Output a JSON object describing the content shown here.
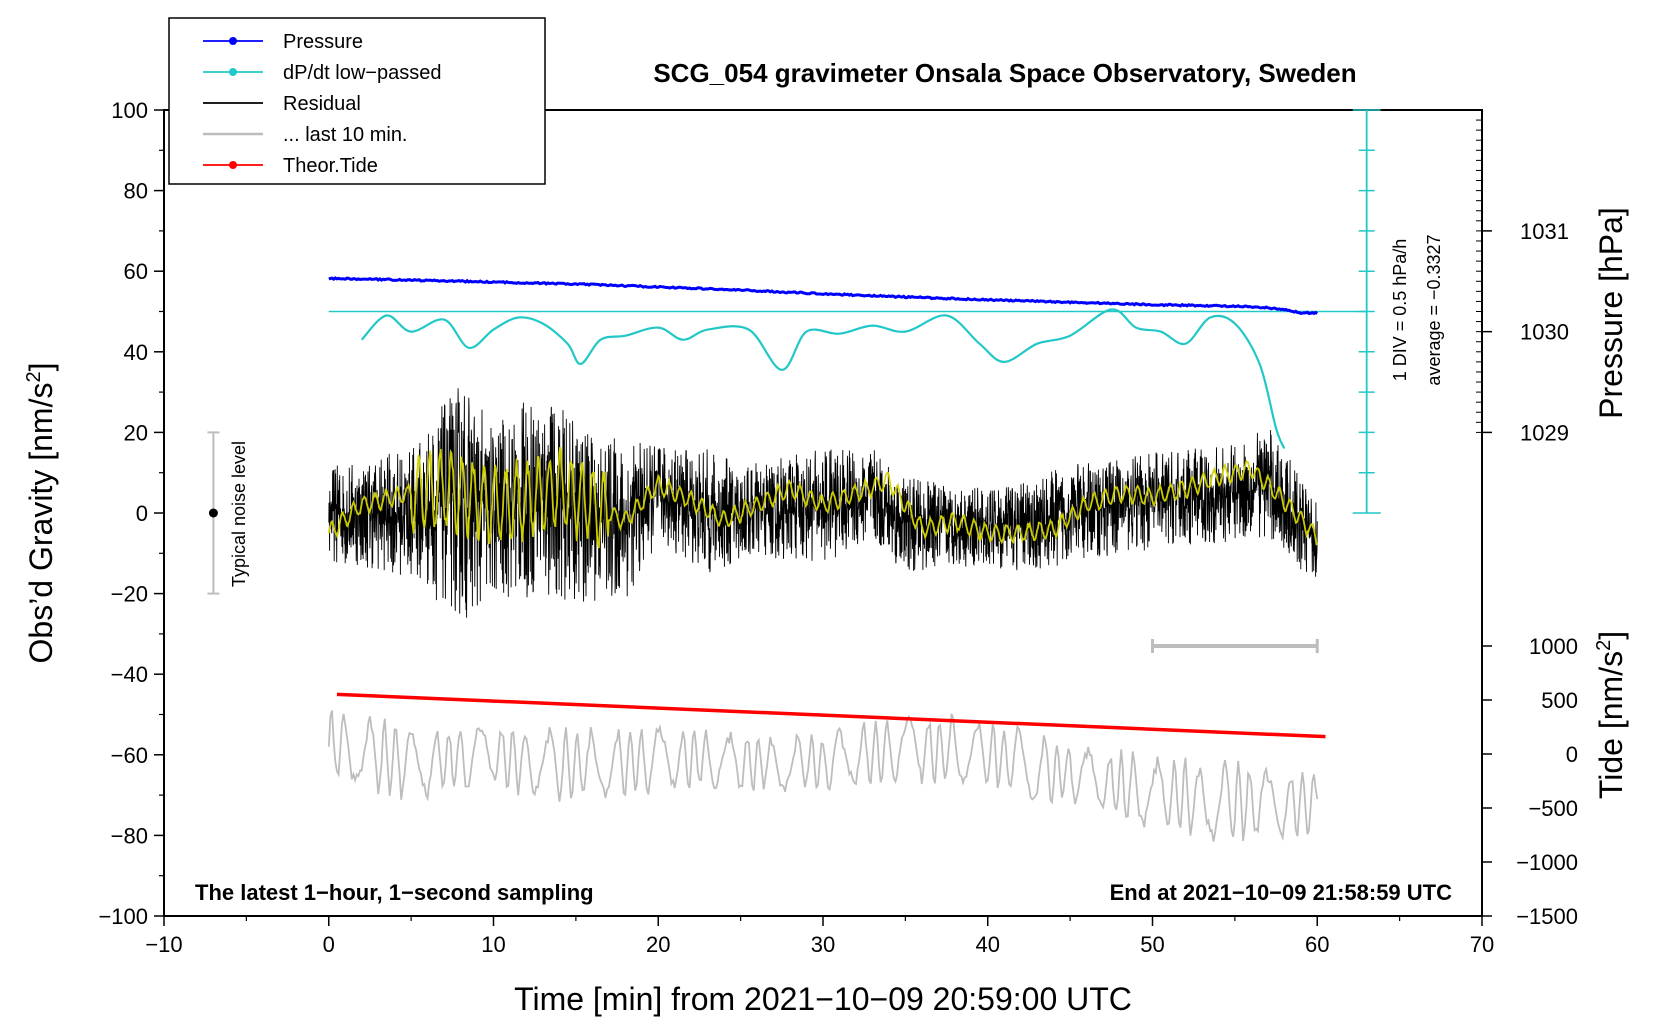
{
  "colors": {
    "pressure": "#0000ff",
    "dpdt": "#22c7c7",
    "residual": "#000000",
    "last10": "#bdbdbd",
    "tide": "#ff0000",
    "smoothed": "#d4d400",
    "noise": "#bdbdbd"
  },
  "chart_data": {
    "type": "line",
    "title": "SCG_054 gravimeter Onsala Space Observatory, Sweden",
    "xlabel": "Time [min] from 2021−10−09 20:59:00 UTC",
    "ylabel_left_prefix": "Obs’d Gravity [nm/s",
    "ylabel_left_sup": "2",
    "ylabel_left_suffix": "]",
    "ylabel_right_pressure": "Pressure [hPa]",
    "ylabel_right_tide_prefix": "Tide [nm/s",
    "ylabel_right_tide_sup": "2",
    "ylabel_right_tide_suffix": "]",
    "xlim": [
      -10,
      70
    ],
    "ylim": [
      -100,
      100
    ],
    "x_ticks": [
      "−10",
      "0",
      "10",
      "20",
      "30",
      "40",
      "50",
      "60",
      "70"
    ],
    "y_ticks": [
      "−100",
      "−80",
      "−60",
      "−40",
      "−20",
      "0",
      "20",
      "40",
      "60",
      "80",
      "100"
    ],
    "pressure_ticks": [
      "1029",
      "1030",
      "1031"
    ],
    "tide_ticks": [
      "−1500",
      "−1000",
      "−500",
      "0",
      "500",
      "1000"
    ],
    "legend": [
      {
        "label": "Pressure",
        "style": "line-dot",
        "color_key": "pressure"
      },
      {
        "label": "dP/dt low−passed",
        "style": "line-dot",
        "color_key": "dpdt"
      },
      {
        "label": "Residual",
        "style": "line",
        "color_key": "residual"
      },
      {
        "label": "... last 10 min.",
        "style": "line",
        "color_key": "last10"
      },
      {
        "label": "Theor.Tide",
        "style": "line-dot",
        "color_key": "tide"
      }
    ],
    "pressure_series": {
      "name": "Pressure",
      "x": [
        0,
        5,
        10,
        15,
        20,
        25,
        30,
        35,
        40,
        45,
        50,
        55,
        57,
        58,
        59,
        60
      ],
      "values": [
        58.2,
        57.8,
        57.3,
        56.8,
        56.1,
        55.3,
        54.4,
        53.6,
        52.9,
        52.3,
        51.7,
        51.3,
        50.9,
        50.4,
        49.7,
        49.6
      ]
    },
    "dpdt_series": {
      "name": "dP/dt low−passed",
      "reference_level": 50,
      "x": [
        2,
        3.5,
        5,
        7,
        8.5,
        10,
        11.5,
        13,
        14.5,
        15.3,
        16.5,
        18,
        20,
        21.5,
        23,
        25.5,
        27.5,
        29,
        31,
        33,
        35,
        37.5,
        39.5,
        41,
        43,
        45,
        47.5,
        49,
        50.5,
        52,
        53.5,
        55,
        56.5,
        57.5,
        58
      ],
      "values": [
        43,
        49,
        45,
        48,
        41,
        45.5,
        48.5,
        47,
        42,
        37,
        43,
        44,
        46,
        43,
        45.5,
        45.5,
        35.5,
        45,
        44.5,
        46.5,
        45,
        49,
        42,
        37.5,
        42,
        44,
        50.5,
        46,
        45,
        42,
        48.5,
        47,
        37,
        21,
        16
      ]
    },
    "residual_envelope": {
      "x": [
        0,
        5,
        8,
        10,
        13,
        15,
        18,
        20,
        23,
        25,
        30,
        33,
        35,
        38,
        40,
        43,
        45,
        50,
        55,
        57,
        59,
        60
      ],
      "center": [
        0,
        0,
        3,
        0,
        5,
        0,
        -2,
        5,
        0,
        0,
        2,
        4,
        -3,
        -3,
        -4,
        -3,
        0,
        3,
        5,
        8,
        -3,
        -6
      ],
      "amplitude": [
        12,
        16,
        30,
        22,
        26,
        22,
        20,
        12,
        16,
        12,
        14,
        12,
        12,
        10,
        10,
        12,
        12,
        12,
        12,
        14,
        12,
        10
      ]
    },
    "smoothed_series": {
      "x": [
        0,
        2,
        4,
        6,
        8,
        10,
        12,
        14,
        16,
        18,
        20,
        22,
        24,
        26,
        28,
        30,
        32,
        34,
        36,
        38,
        40,
        42,
        44,
        46,
        48,
        50,
        52,
        54,
        56,
        58,
        60
      ],
      "values": [
        -5,
        2,
        4,
        6,
        5,
        2,
        3,
        6,
        2,
        -2,
        7,
        3,
        -2,
        2,
        6,
        2,
        5,
        8,
        -4,
        -2,
        -5,
        -5,
        -4,
        2,
        5,
        4,
        6,
        9,
        11,
        3,
        -6
      ]
    },
    "last10_series": {
      "name": "... last 10 min.",
      "x": [
        0,
        5,
        10,
        15,
        20,
        25,
        30,
        35,
        40,
        45,
        50,
        55,
        60
      ],
      "center": [
        -58,
        -62,
        -60,
        -63,
        -61,
        -62,
        -62,
        -58,
        -60,
        -65,
        -70,
        -72,
        -72
      ],
      "amplitude": [
        10,
        10,
        9,
        10,
        9,
        8,
        8,
        9,
        10,
        9,
        10,
        11,
        8
      ]
    },
    "tide_series": {
      "name": "Theor.Tide",
      "x": [
        0.5,
        60.5
      ],
      "values": [
        -45,
        -55.5
      ]
    },
    "noise_bar": {
      "x": -7,
      "low": -20,
      "high": 20,
      "center": 0,
      "label": "Typical noise level"
    },
    "window_bar": {
      "x_start": 50,
      "x_end": 60,
      "y": -33
    },
    "dpdt_scale": {
      "x": 63,
      "y_top": 100,
      "y_bottom": 0,
      "y_ref": 50,
      "divisions": 10
    },
    "annotations": {
      "div_text": "1 DIV = 0.5 hPa/h",
      "avg_text": "average = −0.3327",
      "bottom_left": "The latest 1−hour, 1−second sampling",
      "bottom_right": "End at 2021−10−09 21:58:59 UTC"
    }
  }
}
